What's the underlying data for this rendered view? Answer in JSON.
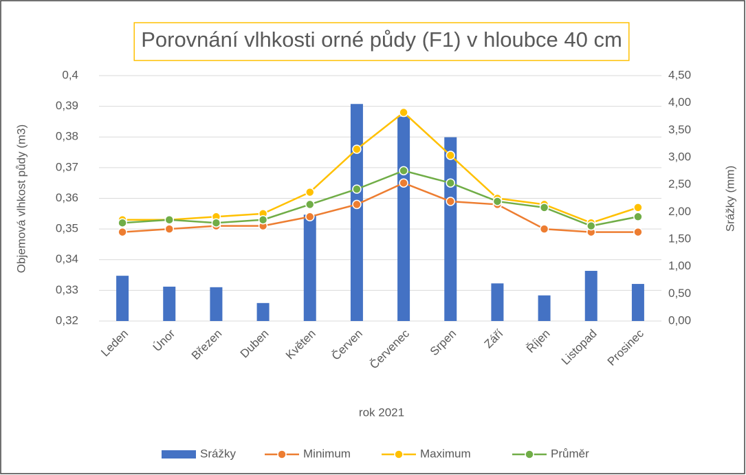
{
  "chart_data": {
    "type": "bar-line",
    "title": "Porovnání vlhkosti orné půdy (F1) v hloubce 40 cm",
    "x_label": "rok 2021",
    "y_label": "Objemová vlhkost půdy (m3)",
    "y2_label": "Srážky (mm)",
    "categories": [
      "Leden",
      "Únor",
      "Březen",
      "Duben",
      "Květen",
      "Červen",
      "Červenec",
      "Srpen",
      "Září",
      "Říjen",
      "Listopad",
      "Prosinec"
    ],
    "series": [
      {
        "name": "Srážky",
        "type": "bar",
        "axis": "y2",
        "color": "#4472c4",
        "values": [
          0.83,
          0.63,
          0.62,
          0.33,
          1.95,
          3.98,
          3.75,
          3.37,
          0.69,
          0.47,
          0.92,
          0.68
        ]
      },
      {
        "name": "Minimum",
        "type": "line",
        "color": "#ed7d31",
        "values": [
          0.349,
          0.35,
          0.351,
          0.351,
          0.354,
          0.358,
          0.365,
          0.359,
          0.358,
          0.35,
          0.349,
          0.349
        ]
      },
      {
        "name": "Maximum",
        "type": "line",
        "color": "#ffc000",
        "values": [
          0.353,
          0.353,
          0.354,
          0.355,
          0.362,
          0.376,
          0.388,
          0.374,
          0.36,
          0.358,
          0.352,
          0.357
        ]
      },
      {
        "name": "Průměr",
        "type": "line",
        "color": "#70ad47",
        "values": [
          0.352,
          0.353,
          0.352,
          0.353,
          0.358,
          0.363,
          0.369,
          0.365,
          0.359,
          0.357,
          0.351,
          0.354
        ]
      }
    ],
    "ylim": [
      0.32,
      0.4
    ],
    "yticks": [
      {
        "value": 0.32,
        "label": "0,32"
      },
      {
        "value": 0.33,
        "label": "0,33"
      },
      {
        "value": 0.34,
        "label": "0,34"
      },
      {
        "value": 0.35,
        "label": "0,35"
      },
      {
        "value": 0.36,
        "label": "0,36"
      },
      {
        "value": 0.37,
        "label": "0,37"
      },
      {
        "value": 0.38,
        "label": "0,38"
      },
      {
        "value": 0.39,
        "label": "0,39"
      },
      {
        "value": 0.4,
        "label": "0,4"
      }
    ],
    "y2lim": [
      0,
      4.5
    ],
    "y2ticks": [
      {
        "value": 0,
        "label": "0,00"
      },
      {
        "value": 0.5,
        "label": "0,50"
      },
      {
        "value": 1,
        "label": "1,00"
      },
      {
        "value": 1.5,
        "label": "1,50"
      },
      {
        "value": 2,
        "label": "2,00"
      },
      {
        "value": 2.5,
        "label": "2,50"
      },
      {
        "value": 3,
        "label": "3,00"
      },
      {
        "value": 3.5,
        "label": "3,50"
      },
      {
        "value": 4,
        "label": "4,00"
      },
      {
        "value": 4.5,
        "label": "4,50"
      }
    ],
    "grid": true,
    "legend": "bottom"
  }
}
